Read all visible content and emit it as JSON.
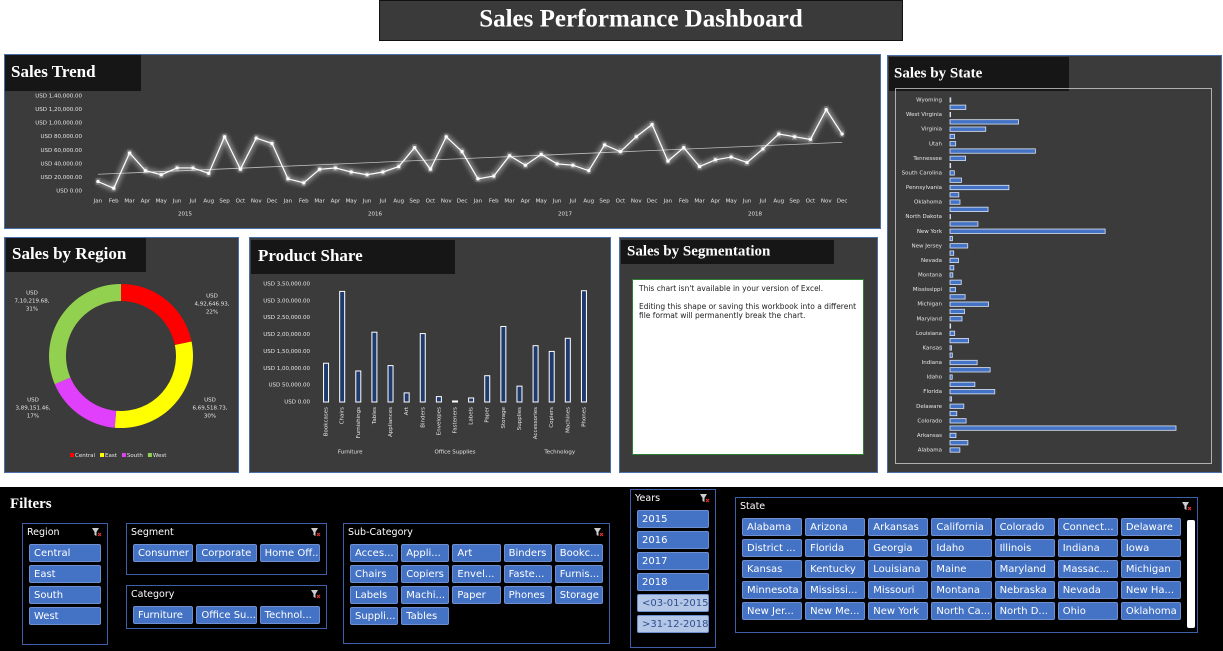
{
  "title": "Sales Performance Dashboard",
  "chart_data": [
    {
      "type": "line",
      "title": "Sales Trend",
      "color": "#ffffff",
      "trendline": true,
      "ylim": [
        0,
        140000
      ],
      "yticks": [
        {
          "value": 0,
          "label": "USD 0.00"
        },
        {
          "value": 20000,
          "label": "USD 20,000.00"
        },
        {
          "value": 40000,
          "label": "USD 40,000.00"
        },
        {
          "value": 60000,
          "label": "USD 60,000.00"
        },
        {
          "value": 80000,
          "label": "USD 80,000.00"
        },
        {
          "value": 100000,
          "label": "USD 1,00,000.00"
        },
        {
          "value": 120000,
          "label": "USD 1,20,000.00"
        },
        {
          "value": 140000,
          "label": "USD 1,40,000.00"
        }
      ],
      "groups": [
        {
          "label": "2015",
          "categories": [
            "Jan",
            "Feb",
            "Mar",
            "Apr",
            "May",
            "Jun",
            "Jul",
            "Aug",
            "Sep",
            "Oct",
            "Nov",
            "Dec"
          ],
          "values": [
            14000,
            4000,
            56000,
            30000,
            24000,
            34000,
            34000,
            26000,
            80000,
            32000,
            78000,
            70000
          ]
        },
        {
          "label": "2016",
          "categories": [
            "Jan",
            "Feb",
            "Mar",
            "Apr",
            "May",
            "Jun",
            "Jul",
            "Aug",
            "Sep",
            "Oct",
            "Nov",
            "Dec"
          ],
          "values": [
            18000,
            12000,
            32000,
            34000,
            28000,
            24000,
            28000,
            36000,
            64000,
            32000,
            80000,
            58000
          ]
        },
        {
          "label": "2017",
          "categories": [
            "Jan",
            "Feb",
            "Mar",
            "Apr",
            "May",
            "Jun",
            "Jul",
            "Aug",
            "Sep",
            "Oct",
            "Nov",
            "Dec"
          ],
          "values": [
            18000,
            22000,
            52000,
            38000,
            54000,
            40000,
            38000,
            30000,
            68000,
            58000,
            80000,
            98000
          ]
        },
        {
          "label": "2018",
          "categories": [
            "Jan",
            "Feb",
            "Mar",
            "Apr",
            "May",
            "Jun",
            "Jul",
            "Aug",
            "Sep",
            "Oct",
            "Nov",
            "Dec"
          ],
          "values": [
            44000,
            64000,
            36000,
            46000,
            50000,
            42000,
            62000,
            84000,
            80000,
            76000,
            120000,
            84000
          ]
        }
      ]
    },
    {
      "type": "donut",
      "title": "Sales by Region",
      "categories": [
        "Central",
        "East",
        "South",
        "West"
      ],
      "values": [
        492646.93,
        669518.73,
        389151.46,
        710219.68
      ],
      "value_labels": [
        [
          "USD",
          "4,92,646.93,",
          "22%"
        ],
        [
          "USD",
          "6,69,518.73,",
          "30%"
        ],
        [
          "USD",
          "3,89,151.46,",
          "17%"
        ],
        [
          "USD",
          "7,10,219.68,",
          "31%"
        ]
      ],
      "colors": [
        "#ff0000",
        "#ffff00",
        "#e040fb",
        "#92d050"
      ],
      "legend": "bottom"
    },
    {
      "type": "bar",
      "title": "Product Share",
      "color": "#ffffff",
      "ylim": [
        0,
        350000
      ],
      "yticks": [
        {
          "value": 0,
          "label": "USD 0.00"
        },
        {
          "value": 50000,
          "label": "USD 50,000.00"
        },
        {
          "value": 100000,
          "label": "USD 1,00,000.00"
        },
        {
          "value": 150000,
          "label": "USD 1,50,000.00"
        },
        {
          "value": 200000,
          "label": "USD 2,00,000.00"
        },
        {
          "value": 250000,
          "label": "USD 2,50,000.00"
        },
        {
          "value": 300000,
          "label": "USD 3,00,000.00"
        },
        {
          "value": 350000,
          "label": "USD 3,50,000.00"
        }
      ],
      "groups": [
        {
          "label": "Furniture",
          "categories": [
            "Bookcases",
            "Chairs",
            "Furnishings",
            "Tables"
          ],
          "values": [
            115000,
            328000,
            92000,
            207000
          ]
        },
        {
          "label": "Office Supplies",
          "categories": [
            "Appliances",
            "Art",
            "Binders",
            "Envelopes",
            "Fasteners",
            "Labels",
            "Paper",
            "Storage",
            "Supplies"
          ],
          "values": [
            108000,
            27000,
            203000,
            16000,
            3000,
            12000,
            78000,
            224000,
            47000
          ]
        },
        {
          "label": "Technology",
          "categories": [
            "Accessories",
            "Copiers",
            "Machines",
            "Phones"
          ],
          "values": [
            167000,
            150000,
            189000,
            330000
          ]
        }
      ]
    },
    {
      "type": "placeholder",
      "title": "Sales by Segmentation",
      "notice": [
        "This chart isn't available in your version of Excel.",
        "Editing this shape or saving this workbook into a different file format will permanently break the chart."
      ]
    },
    {
      "type": "hbar",
      "title": "Sales by State",
      "color": "#4472c4",
      "categories": [
        "Alabama",
        null,
        "Arkansas",
        null,
        "Colorado",
        null,
        "Delaware",
        null,
        "Florida",
        null,
        "Idaho",
        null,
        "Indiana",
        null,
        "Kansas",
        null,
        "Louisiana",
        null,
        "Maryland",
        null,
        "Michigan",
        null,
        "Mississippi",
        null,
        "Montana",
        null,
        "Nevada",
        null,
        "New Jersey",
        null,
        "New York",
        null,
        "North Dakota",
        null,
        "Oklahoma",
        null,
        "Pennsylvania",
        null,
        "South Carolina",
        null,
        "Tennessee",
        null,
        "Utah",
        null,
        "Virginia",
        null,
        "West Virginia",
        null,
        "Wyoming"
      ],
      "values": [
        19500,
        35300,
        11700,
        446300,
        31800,
        13400,
        27300,
        2900,
        88400,
        49100,
        4400,
        79200,
        53600,
        4600,
        2900,
        36600,
        9200,
        1300,
        23700,
        28600,
        76100,
        29900,
        10800,
        22200,
        5600,
        7500,
        16700,
        7300,
        35000,
        4800,
        306400,
        55200,
        920,
        75100,
        19700,
        17400,
        116300,
        22600,
        8500,
        1300,
        30700,
        168600,
        11200,
        8900,
        70600,
        135200,
        1200,
        31200,
        1600
      ]
    }
  ],
  "filters": {
    "title": "Filters",
    "slicers": [
      {
        "title": "Region",
        "items": [
          "Central",
          "East",
          "South",
          "West"
        ]
      },
      {
        "title": "Segment",
        "items": [
          "Consumer",
          "Corporate",
          "Home Off..."
        ]
      },
      {
        "title": "Category",
        "items": [
          "Furniture",
          "Office Su...",
          "Technol..."
        ]
      },
      {
        "title": "Sub-Category",
        "items": [
          "Acces...",
          "Appli...",
          "Art",
          "Binders",
          "Bookc...",
          "Chairs",
          "Copiers",
          "Envel...",
          "Faste...",
          "Furnis...",
          "Labels",
          "Machi...",
          "Paper",
          "Phones",
          "Storage",
          "Suppli...",
          "Tables"
        ]
      },
      {
        "title": "Years",
        "items": [
          "2015",
          "2016",
          "2017",
          "2018",
          "<03-01-2015",
          ">31-12-2018"
        ]
      },
      {
        "title": "State",
        "items": [
          "Alabama",
          "Arizona",
          "Arkansas",
          "California",
          "Colorado",
          "Connect...",
          "Delaware",
          "District ...",
          "Florida",
          "Georgia",
          "Idaho",
          "Illinois",
          "Indiana",
          "Iowa",
          "Kansas",
          "Kentucky",
          "Louisiana",
          "Maine",
          "Maryland",
          "Massac...",
          "Michigan",
          "Minnesota",
          "Mississi...",
          "Missouri",
          "Montana",
          "Nebraska",
          "Nevada",
          "New Ha...",
          "New Jer...",
          "New Me...",
          "New York",
          "North Ca...",
          "North D...",
          "Ohio",
          "Oklahoma"
        ]
      }
    ]
  }
}
